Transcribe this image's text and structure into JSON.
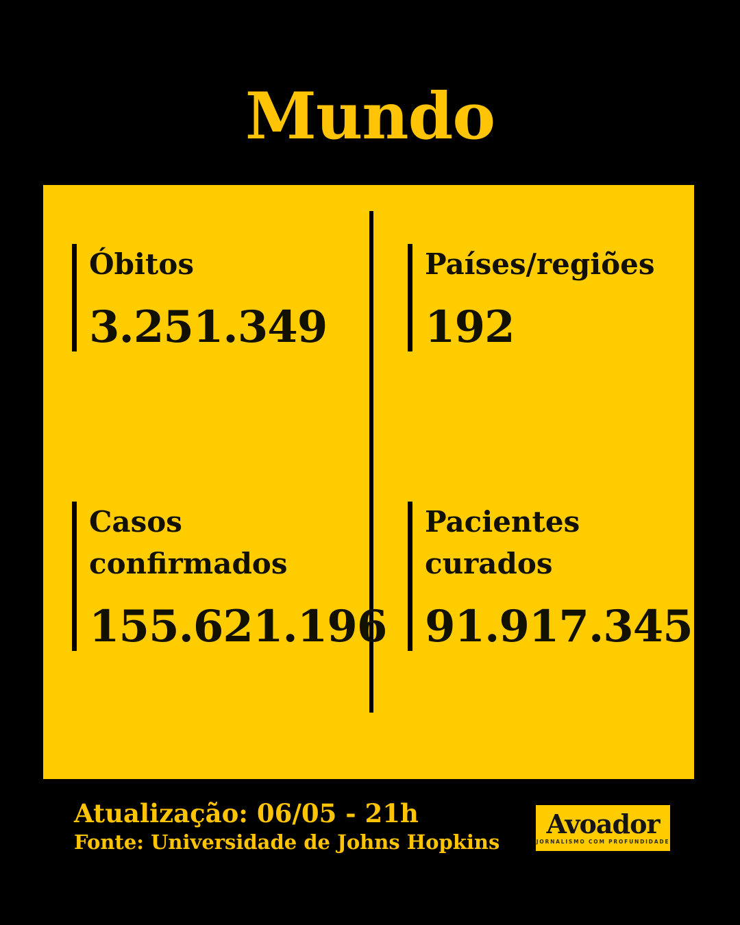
{
  "title": "Mundo",
  "colors": {
    "background": "#000000",
    "card": "#FFCC00",
    "title_text": "#FFC405",
    "footer_text": "#FFC401",
    "stat_text": "#121000",
    "accent_bar": "#000000",
    "logo_background": "#FFCC00",
    "logo_text": "#151515"
  },
  "stats": [
    {
      "label": "Óbitos",
      "value": "3.251.349"
    },
    {
      "label": "Países/regiões",
      "value": "192"
    },
    {
      "label": "Casos\nconfirmados",
      "value": "155.621.196"
    },
    {
      "label": "Pacientes\ncurados",
      "value": "91.917.345"
    }
  ],
  "footer": {
    "update": "Atualização: 06/05 - 21h",
    "source": "Fonte: Universidade de Johns Hopkins"
  },
  "logo": {
    "name": "Avoador",
    "tagline": "JORNALISMO COM PROFUNDIDADE"
  },
  "chart_data": {
    "type": "table",
    "title": "Mundo",
    "categories": [
      "Óbitos",
      "Países/regiões",
      "Casos confirmados",
      "Pacientes curados"
    ],
    "values": [
      3251349,
      192,
      155621196,
      91917345
    ],
    "value_labels": [
      "3.251.349",
      "192",
      "155.621.196",
      "91.917.345"
    ],
    "annotations": [
      "Atualização: 06/05 - 21h",
      "Fonte: Universidade de Johns Hopkins"
    ]
  }
}
